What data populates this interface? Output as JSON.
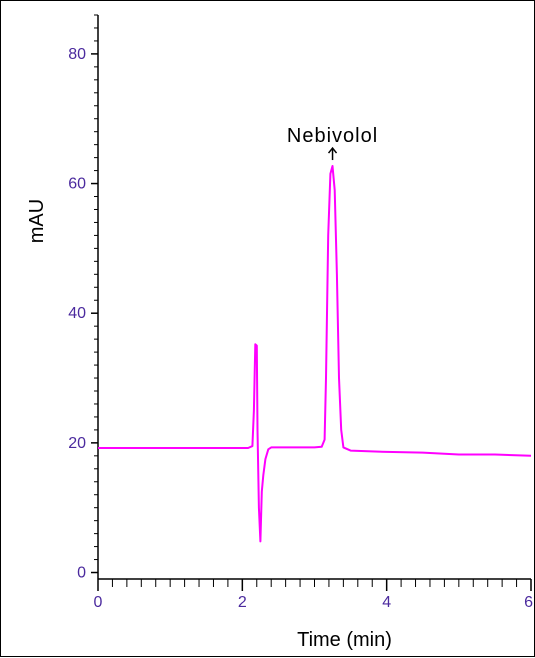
{
  "chart_data": {
    "type": "line",
    "title": "",
    "xlabel": "Time (min)",
    "ylabel": "mAU",
    "xlim": [
      0,
      6
    ],
    "ylim": [
      -1,
      86
    ],
    "x_ticks": [
      {
        "value": 0,
        "label": "0"
      },
      {
        "value": 2,
        "label": "2"
      },
      {
        "value": 4,
        "label": "4"
      },
      {
        "value": 6,
        "label": "6"
      }
    ],
    "y_ticks": [
      {
        "value": 0,
        "label": "0"
      },
      {
        "value": 20,
        "label": "20"
      },
      {
        "value": 40,
        "label": "40"
      },
      {
        "value": 60,
        "label": "60"
      },
      {
        "value": 80,
        "label": "80"
      }
    ],
    "grid": false,
    "legend": "none",
    "colors": {
      "trace": "#ff00ff",
      "tick_label": "#4b2a9e",
      "axis": "#000000"
    },
    "series": [
      {
        "points": [
          [
            0,
            19.2
          ],
          [
            1.5,
            19.2
          ],
          [
            2.08,
            19.2
          ],
          [
            2.14,
            19.5
          ],
          [
            2.16,
            25.0
          ],
          [
            2.18,
            35.2
          ],
          [
            2.2,
            35.0
          ],
          [
            2.21,
            22.0
          ],
          [
            2.23,
            10.0
          ],
          [
            2.25,
            4.8
          ],
          [
            2.27,
            12.5
          ],
          [
            2.29,
            15.0
          ],
          [
            2.32,
            17.5
          ],
          [
            2.36,
            19.0
          ],
          [
            2.4,
            19.3
          ],
          [
            3.0,
            19.3
          ],
          [
            3.1,
            19.4
          ],
          [
            3.14,
            20.5
          ],
          [
            3.16,
            30.0
          ],
          [
            3.19,
            52.0
          ],
          [
            3.22,
            61.5
          ],
          [
            3.25,
            62.7
          ],
          [
            3.28,
            59.0
          ],
          [
            3.31,
            46.0
          ],
          [
            3.34,
            30.0
          ],
          [
            3.37,
            22.0
          ],
          [
            3.4,
            19.3
          ],
          [
            3.5,
            18.8
          ],
          [
            4.0,
            18.6
          ],
          [
            4.5,
            18.5
          ],
          [
            5.0,
            18.2
          ],
          [
            5.5,
            18.2
          ],
          [
            6.0,
            18.0
          ]
        ]
      }
    ],
    "annotations": [
      {
        "text": "Nebivolol",
        "x": 3.25,
        "y": 62.7
      }
    ]
  }
}
